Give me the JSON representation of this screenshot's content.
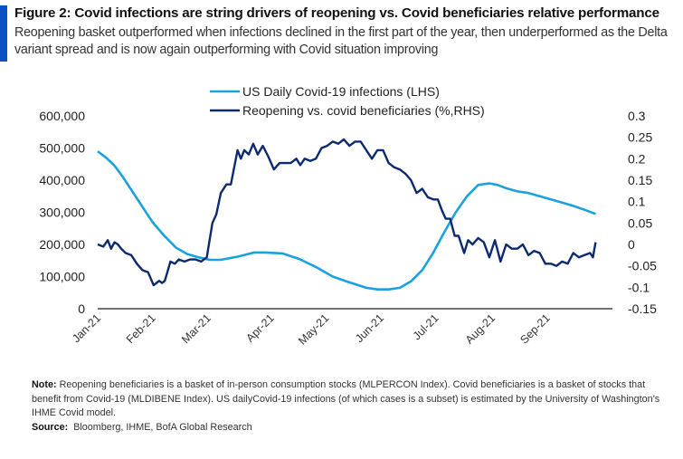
{
  "figure": {
    "title": "Figure 2: Covid infections are string drivers of reopening vs. Covid beneficiaries relative performance",
    "subtitle": "Reopening basket outperformed when infections declined in the first part of the year, then underperformed as the Delta variant spread and is now again outperforming with Covid situation improving",
    "accent_color": "#0a52c4"
  },
  "notes": {
    "note_label": "Note:",
    "note_text_1": " Reopening beneficiaries is a basket of in-person consumption  stocks (MLPERCON Index).  Covid beneficiaries is a basket of stocks that benefit from Covid-19 (MLDIBENE Index).  US dailyCovid-19 infections (of which cases is a subset) is estimated by the University of Washington's",
    "note_text_2": "IHME Covid model.",
    "source_label": "Source:",
    "source_text": "  Bloomberg, IHME, BofA Global Research"
  },
  "chart_data": {
    "type": "line",
    "title": "",
    "xlabel": "",
    "x_ticks": [
      "Jan-21",
      "Feb-21",
      "Mar-21",
      "Apr-21",
      "May-21",
      "Jun-21",
      "Jul-21",
      "Aug-21",
      "Sep-21"
    ],
    "x_range": [
      "2021-01-01",
      "2021-10-01"
    ],
    "left_axis": {
      "label": "LHS",
      "ylim": [
        0,
        600000
      ],
      "ticks": [
        0,
        100000,
        200000,
        300000,
        400000,
        500000,
        600000
      ],
      "tick_labels": [
        "0",
        "100,000",
        "200,000",
        "300,000",
        "400,000",
        "500,000",
        "600,000"
      ]
    },
    "right_axis": {
      "label": "RHS",
      "ylim": [
        -0.15,
        0.3
      ],
      "ticks": [
        -0.15,
        -0.1,
        -0.05,
        0,
        0.05,
        0.1,
        0.15,
        0.2,
        0.25,
        0.3
      ],
      "tick_labels": [
        "-0.15",
        "-0.1",
        "-0.05",
        "0",
        "0.05",
        "0.1",
        "0.15",
        "0.2",
        "0.25",
        "0.3"
      ]
    },
    "grid": false,
    "legend_position": "top-center",
    "series": [
      {
        "name": "US Daily Covid-19 infections (LHS)",
        "axis": "left",
        "color": "#1ba1de",
        "x_month": [
          0.0,
          0.15,
          0.3,
          0.45,
          0.6,
          0.75,
          0.9,
          1.0,
          1.2,
          1.4,
          1.6,
          1.8,
          2.0,
          2.2,
          2.5,
          2.8,
          3.0,
          3.3,
          3.6,
          3.9,
          4.2,
          4.5,
          4.8,
          5.0,
          5.2,
          5.4,
          5.6,
          5.8,
          6.0,
          6.2,
          6.4,
          6.6,
          6.8,
          7.0,
          7.15,
          7.3,
          7.5,
          7.7,
          7.9,
          8.1,
          8.3,
          8.5,
          8.7,
          8.9
        ],
        "values": [
          490000,
          470000,
          445000,
          410000,
          370000,
          330000,
          290000,
          265000,
          225000,
          190000,
          170000,
          160000,
          152000,
          152000,
          162000,
          175000,
          175000,
          172000,
          155000,
          130000,
          100000,
          82000,
          65000,
          60000,
          60000,
          65000,
          85000,
          120000,
          175000,
          240000,
          300000,
          350000,
          385000,
          390000,
          385000,
          375000,
          365000,
          360000,
          350000,
          340000,
          330000,
          320000,
          308000,
          295000
        ]
      },
      {
        "name": "Reopening vs. covid beneficiaries (%,RHS)",
        "axis": "right",
        "color": "#0b2a6f",
        "x_month": [
          0.0,
          0.1,
          0.18,
          0.24,
          0.3,
          0.36,
          0.42,
          0.5,
          0.6,
          0.7,
          0.8,
          0.9,
          1.0,
          1.1,
          1.15,
          1.2,
          1.3,
          1.38,
          1.45,
          1.55,
          1.65,
          1.75,
          1.85,
          1.95,
          2.05,
          2.12,
          2.2,
          2.3,
          2.38,
          2.44,
          2.5,
          2.56,
          2.62,
          2.7,
          2.78,
          2.86,
          2.95,
          3.05,
          3.15,
          3.25,
          3.35,
          3.45,
          3.55,
          3.62,
          3.7,
          3.8,
          3.9,
          4.0,
          4.1,
          4.2,
          4.3,
          4.4,
          4.5,
          4.6,
          4.7,
          4.8,
          4.9,
          5.0,
          5.1,
          5.2,
          5.3,
          5.4,
          5.5,
          5.6,
          5.7,
          5.8,
          5.9,
          6.0,
          6.08,
          6.15,
          6.22,
          6.3,
          6.38,
          6.45,
          6.55,
          6.62,
          6.7,
          6.8,
          6.9,
          7.0,
          7.1,
          7.2,
          7.3,
          7.4,
          7.5,
          7.6,
          7.7,
          7.8,
          7.9,
          8.0,
          8.1,
          8.2,
          8.3,
          8.4,
          8.5,
          8.6,
          8.7,
          8.8,
          8.85,
          8.9
        ],
        "values": [
          0.0,
          -0.005,
          0.01,
          -0.01,
          0.005,
          0.0,
          -0.01,
          -0.02,
          -0.025,
          -0.045,
          -0.06,
          -0.065,
          -0.095,
          -0.085,
          -0.09,
          -0.085,
          -0.04,
          -0.045,
          -0.035,
          -0.04,
          -0.035,
          -0.035,
          -0.04,
          -0.03,
          0.05,
          0.07,
          0.12,
          0.14,
          0.14,
          0.18,
          0.22,
          0.2,
          0.22,
          0.21,
          0.235,
          0.21,
          0.23,
          0.205,
          0.175,
          0.19,
          0.19,
          0.19,
          0.2,
          0.185,
          0.2,
          0.195,
          0.2,
          0.225,
          0.23,
          0.24,
          0.235,
          0.245,
          0.23,
          0.24,
          0.24,
          0.22,
          0.2,
          0.22,
          0.22,
          0.19,
          0.18,
          0.175,
          0.165,
          0.15,
          0.12,
          0.13,
          0.11,
          0.105,
          0.105,
          0.08,
          0.06,
          0.06,
          0.02,
          0.02,
          -0.02,
          0.01,
          0.0,
          0.015,
          0.005,
          -0.03,
          0.01,
          -0.04,
          0.0,
          -0.01,
          -0.01,
          0.0,
          -0.025,
          -0.015,
          -0.02,
          -0.045,
          -0.045,
          -0.05,
          -0.04,
          -0.045,
          -0.02,
          -0.03,
          -0.025,
          -0.02,
          -0.03,
          0.005
        ]
      }
    ]
  }
}
